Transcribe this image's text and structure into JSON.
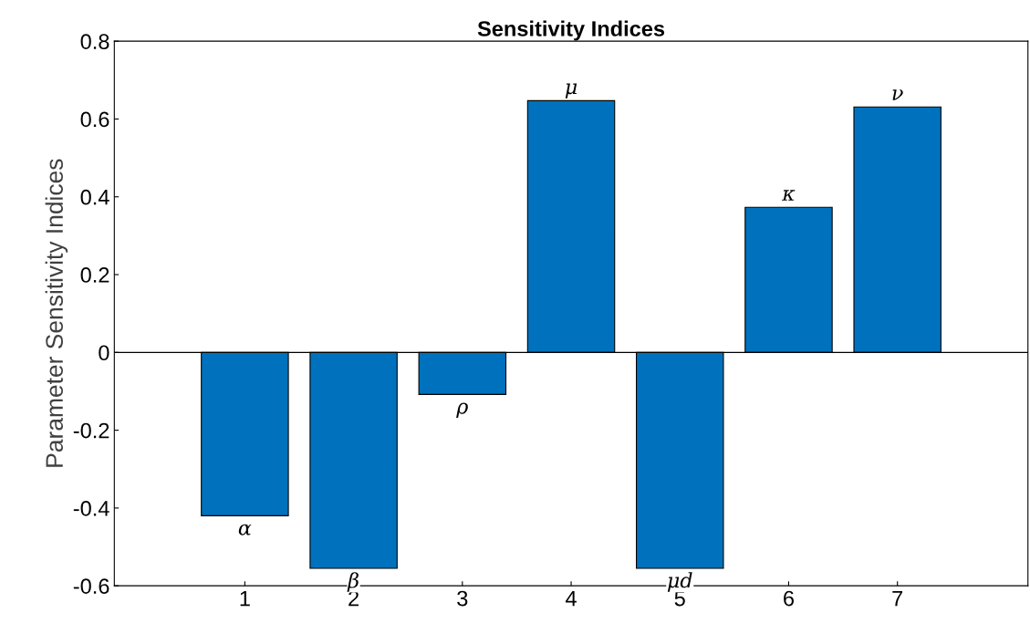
{
  "chart_data": {
    "type": "bar",
    "title": "Sensitivity Indices",
    "ylabel": "Parameter Sensitivity Indices",
    "x": [
      1,
      2,
      3,
      4,
      5,
      6,
      7
    ],
    "values": [
      -0.42,
      -0.555,
      -0.108,
      0.647,
      -0.555,
      0.373,
      0.631
    ],
    "color": "#0072bd",
    "xlim": [
      -0.2,
      8.2
    ],
    "xticks": [
      1,
      2,
      3,
      4,
      5,
      6,
      7
    ],
    "ylim": [
      -0.6,
      0.8
    ],
    "yticks": [
      -0.6,
      -0.4,
      -0.2,
      0,
      0.2,
      0.4,
      0.6,
      0.8
    ],
    "grid": false,
    "ref_lines": [
      {
        "axis": "y",
        "value": 0,
        "color": "#000000"
      }
    ],
    "annotations": [
      {
        "text": "α",
        "x": 1,
        "y": -0.42
      },
      {
        "text": "β",
        "x": 2,
        "y": -0.555
      },
      {
        "text": "ρ",
        "x": 3,
        "y": -0.108
      },
      {
        "text": "μ",
        "x": 4,
        "y": 0.647
      },
      {
        "text": "μd",
        "x": 5,
        "y": -0.555
      },
      {
        "text": "κ",
        "x": 6,
        "y": 0.373
      },
      {
        "text": "ν",
        "x": 7,
        "y": 0.631
      }
    ]
  }
}
